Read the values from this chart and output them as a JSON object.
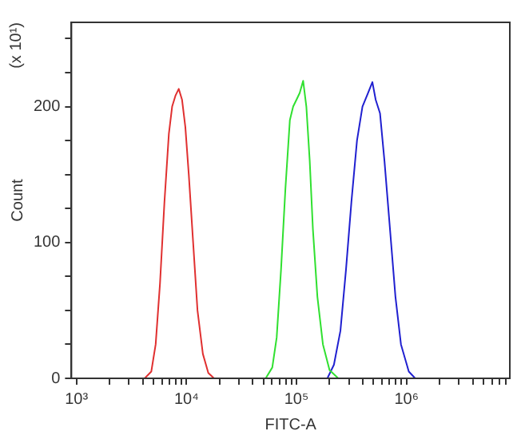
{
  "chart_data": {
    "type": "line",
    "xlabel": "FITC-A",
    "ylabel": "Count",
    "annotations": [
      "(x 10¹)"
    ],
    "log": "x",
    "grid": false,
    "legend": false,
    "marker": "none",
    "line_style": "solid",
    "xlim": [
      900,
      8700000
    ],
    "xticks": [
      {
        "value": 1000,
        "label": "10³"
      },
      {
        "value": 2000,
        "label": null
      },
      {
        "value": 3000,
        "label": null
      },
      {
        "value": 4000,
        "label": null
      },
      {
        "value": 5000,
        "label": null
      },
      {
        "value": 6000,
        "label": null
      },
      {
        "value": 7000,
        "label": null
      },
      {
        "value": 8000,
        "label": null
      },
      {
        "value": 9000,
        "label": null
      },
      {
        "value": 10000,
        "label": "10⁴"
      },
      {
        "value": 20000,
        "label": null
      },
      {
        "value": 30000,
        "label": null
      },
      {
        "value": 40000,
        "label": null
      },
      {
        "value": 50000,
        "label": null
      },
      {
        "value": 60000,
        "label": null
      },
      {
        "value": 70000,
        "label": null
      },
      {
        "value": 80000,
        "label": null
      },
      {
        "value": 90000,
        "label": null
      },
      {
        "value": 100000,
        "label": "10⁵"
      },
      {
        "value": 200000,
        "label": null
      },
      {
        "value": 300000,
        "label": null
      },
      {
        "value": 400000,
        "label": null
      },
      {
        "value": 500000,
        "label": null
      },
      {
        "value": 600000,
        "label": null
      },
      {
        "value": 700000,
        "label": null
      },
      {
        "value": 800000,
        "label": null
      },
      {
        "value": 900000,
        "label": null
      },
      {
        "value": 1000000,
        "label": "10⁶"
      },
      {
        "value": 2000000,
        "label": null
      },
      {
        "value": 3000000,
        "label": null
      },
      {
        "value": 4000000,
        "label": null
      },
      {
        "value": 5000000,
        "label": null
      },
      {
        "value": 6000000,
        "label": null
      },
      {
        "value": 7000000,
        "label": null
      },
      {
        "value": 8000000,
        "label": null
      }
    ],
    "ylim": [
      0,
      262
    ],
    "yticks": [
      0,
      {
        "value": 25,
        "label": null
      },
      {
        "value": 50,
        "label": null
      },
      {
        "value": 75,
        "label": null
      },
      100,
      {
        "value": 125,
        "label": null
      },
      {
        "value": 150,
        "label": null
      },
      {
        "value": 175,
        "label": null
      },
      200,
      {
        "value": 225,
        "label": null
      },
      {
        "value": 250,
        "label": null
      }
    ],
    "series": [
      {
        "color": "#e03030",
        "x": [
          4170,
          4790,
          5250,
          5750,
          6310,
          6920,
          7410,
          7940,
          8510,
          9120,
          9770,
          10500,
          11500,
          12600,
          14100,
          15800,
          17800
        ],
        "values": [
          0,
          5,
          25,
          70,
          130,
          180,
          200,
          208,
          213,
          205,
          185,
          150,
          100,
          50,
          18,
          4,
          0
        ]
      },
      {
        "color": "#30e030",
        "x": [
          52500,
          60300,
          66100,
          72400,
          79400,
          87100,
          93300,
          100000,
          107000,
          115000,
          123000,
          132000,
          141000,
          155000,
          174000,
          200000,
          240000
        ],
        "values": [
          0,
          8,
          30,
          80,
          140,
          190,
          200,
          205,
          210,
          219,
          200,
          160,
          110,
          60,
          25,
          6,
          0
        ]
      },
      {
        "color": "#2020d0",
        "x": [
          191000,
          219000,
          251000,
          282000,
          316000,
          355000,
          398000,
          447000,
          490000,
          525000,
          575000,
          631000,
          708000,
          794000,
          891000,
          1050000,
          1200000
        ],
        "values": [
          0,
          10,
          35,
          80,
          130,
          175,
          200,
          210,
          218,
          205,
          195,
          160,
          110,
          60,
          25,
          5,
          0
        ]
      }
    ]
  }
}
